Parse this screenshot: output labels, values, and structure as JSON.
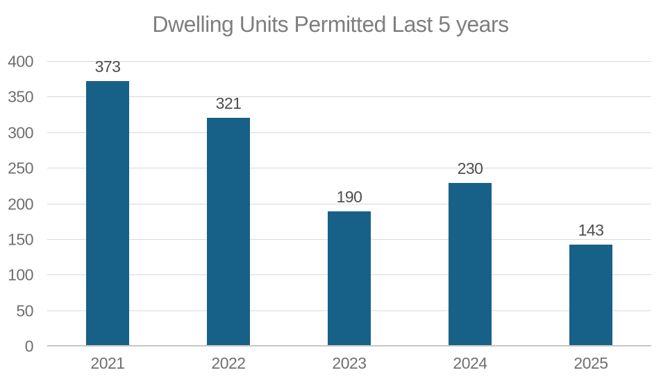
{
  "chart_data": {
    "type": "bar",
    "title": "Dwelling Units Permitted Last 5 years",
    "categories": [
      "2021",
      "2022",
      "2023",
      "2024",
      "2025"
    ],
    "values": [
      373,
      321,
      190,
      230,
      143
    ],
    "xlabel": "",
    "ylabel": "",
    "ylim": [
      0,
      400
    ],
    "yticks": [
      0,
      50,
      100,
      150,
      200,
      250,
      300,
      350,
      400
    ],
    "grid": "horizontal",
    "legend_position": "none",
    "data_labels": true,
    "colors": {
      "bar": "#176087",
      "gridline": "#d9d9d9",
      "axis_line": "#c6c6c6",
      "title_text": "#7e7e7e",
      "tick_text": "#6f6f6f",
      "data_label_text": "#4d4d4d",
      "background": "#ffffff"
    }
  }
}
